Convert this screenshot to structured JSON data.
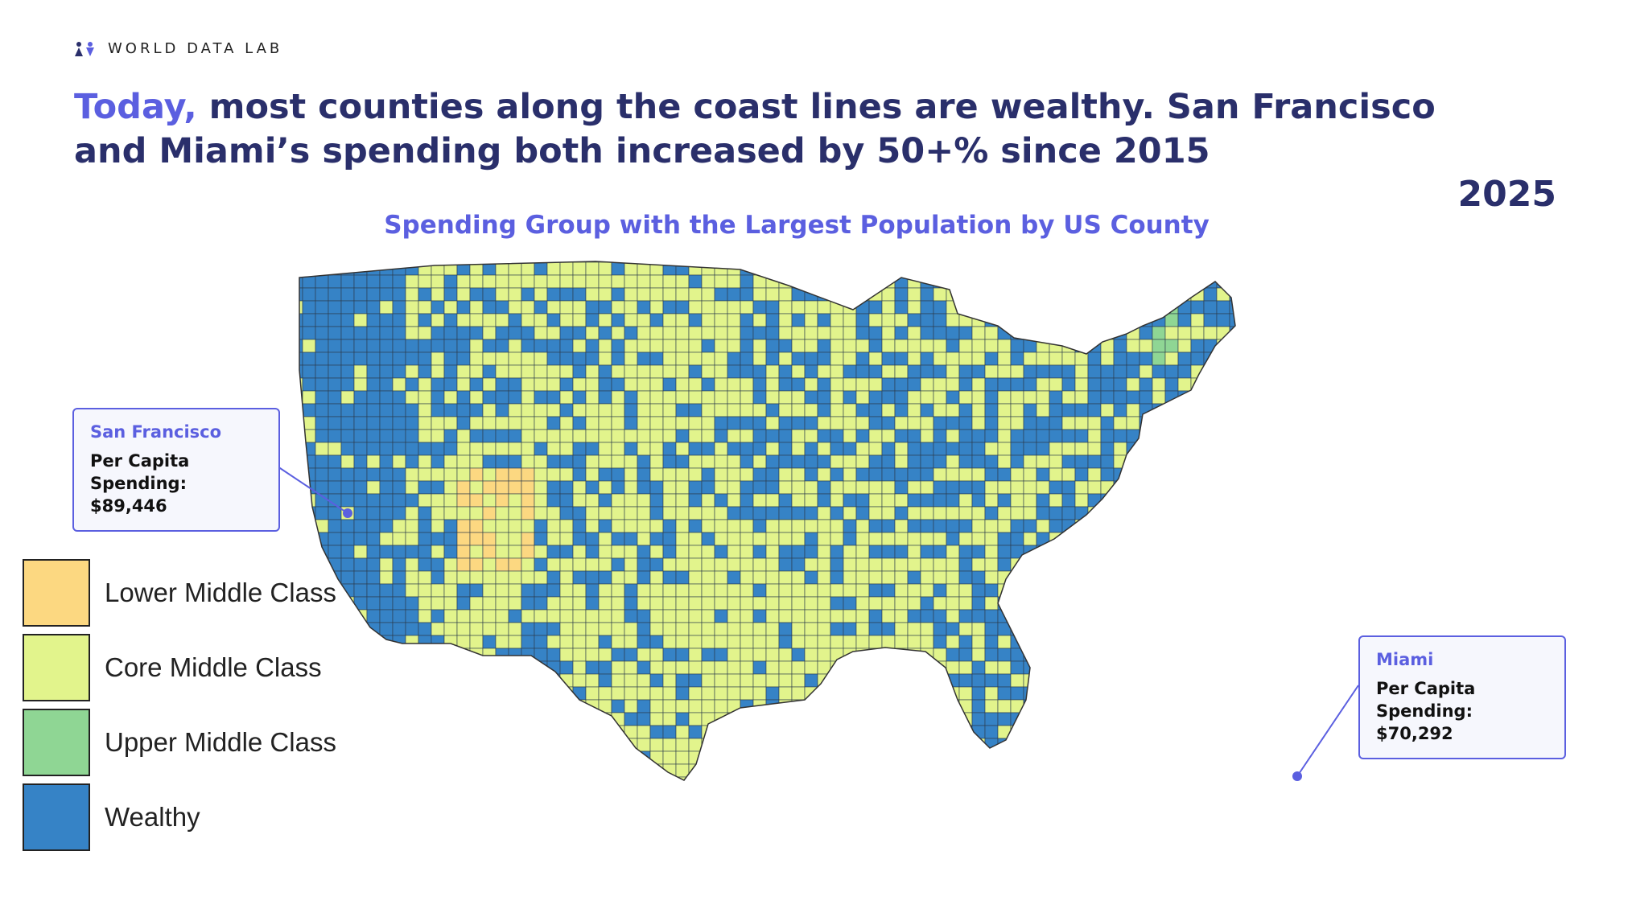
{
  "brand": {
    "name": "WORLD DATA LAB",
    "logo_icon": "people-logo-icon"
  },
  "headline": {
    "accent": "Today,",
    "text": " most counties along the coast lines are wealthy. San Francisco and Miami’s spending both increased by 50+% since 2015"
  },
  "year": "2025",
  "map_title": "Spending Group with the Largest Population by US County",
  "colors": {
    "accent": "#5b5fe0",
    "headline": "#2a2f6b",
    "lower_middle": "#fcd881",
    "core_middle": "#e2f48c",
    "upper_middle": "#8fd694",
    "wealthy": "#3683c6"
  },
  "legend": [
    {
      "label": "Lower Middle Class",
      "color": "#fcd881"
    },
    {
      "label": "Core Middle Class",
      "color": "#e2f48c"
    },
    {
      "label": "Upper Middle Class",
      "color": "#8fd694"
    },
    {
      "label": "Wealthy",
      "color": "#3683c6"
    }
  ],
  "callouts": {
    "sf": {
      "city": "San Francisco",
      "line1": "Per Capita",
      "line2": "Spending: $89,446"
    },
    "miami": {
      "city": "Miami",
      "line1": "Per Capita",
      "line2": "Spending: $70,292"
    }
  }
}
